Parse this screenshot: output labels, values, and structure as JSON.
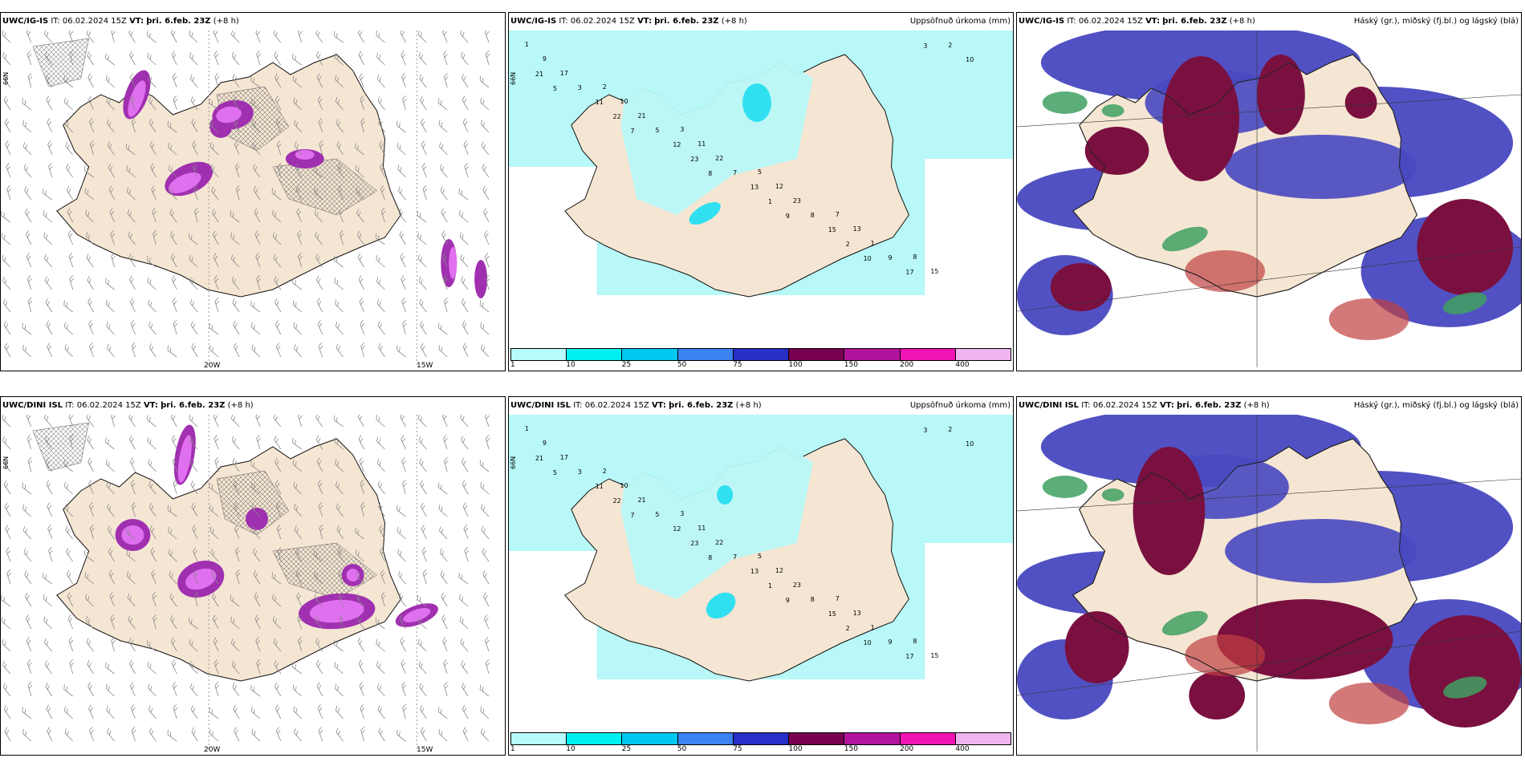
{
  "panels": [
    {
      "model": "UWC/IG-IS",
      "it": "IT: 06.02.2024 15Z",
      "vt_label": "VT:",
      "vt": "þri. 6.feb. 23Z",
      "lead": "(+8 h)",
      "right": "",
      "type": "wind"
    },
    {
      "model": "UWC/IG-IS",
      "it": "IT: 06.02.2024 15Z",
      "vt_label": "VT:",
      "vt": "þri. 6.feb. 23Z",
      "lead": "(+8 h)",
      "right": "Uppsöfnuð úrkoma (mm)",
      "type": "precip"
    },
    {
      "model": "UWC/IG-IS",
      "it": "IT: 06.02.2024 15Z",
      "vt_label": "VT:",
      "vt": "þri. 6.feb. 23Z",
      "lead": "(+8 h)",
      "right": "Háský (gr.), miðský (fj.bl.) og lágský (blá)",
      "type": "cloud"
    },
    {
      "model": "UWC/DINI ISL",
      "it": "IT: 06.02.2024 15Z",
      "vt_label": "VT:",
      "vt": "þri. 6.feb. 23Z",
      "lead": "(+8 h)",
      "right": "",
      "type": "wind"
    },
    {
      "model": "UWC/DINI ISL",
      "it": "IT: 06.02.2024 15Z",
      "vt_label": "VT:",
      "vt": "þri. 6.feb. 23Z",
      "lead": "(+8 h)",
      "right": "Uppsöfnuð úrkoma (mm)",
      "type": "precip"
    },
    {
      "model": "UWC/DINI ISL",
      "it": "IT: 06.02.2024 15Z",
      "vt_label": "VT:",
      "vt": "þri. 6.feb. 23Z",
      "lead": "(+8 h)",
      "right": "Háský (gr.), miðský (fj.bl.) og lágský (blá)",
      "type": "cloud"
    }
  ],
  "axis": {
    "lon_a": "20W",
    "lon_b": "15W",
    "lat": "66N"
  },
  "colorbar": {
    "labels": [
      "1",
      "10",
      "25",
      "50",
      "75",
      "100",
      "150",
      "200",
      "400"
    ],
    "colors": [
      "#b8fbfb",
      "#00f0f0",
      "#00c8f0",
      "#3c82f0",
      "#2830c8",
      "#780050",
      "#b0149c",
      "#f014b4",
      "#f0b4f0"
    ]
  },
  "colors": {
    "land": "#f5e6d3",
    "purple": "#a030b0",
    "magenta": "#e070f0",
    "cyan_light": "#b8f8f8",
    "cyan": "#30e0f0",
    "cloud_blue": "#4848c0",
    "cloud_dark": "#7a1040",
    "cloud_red": "#c04040",
    "cloud_green": "#40a060"
  }
}
